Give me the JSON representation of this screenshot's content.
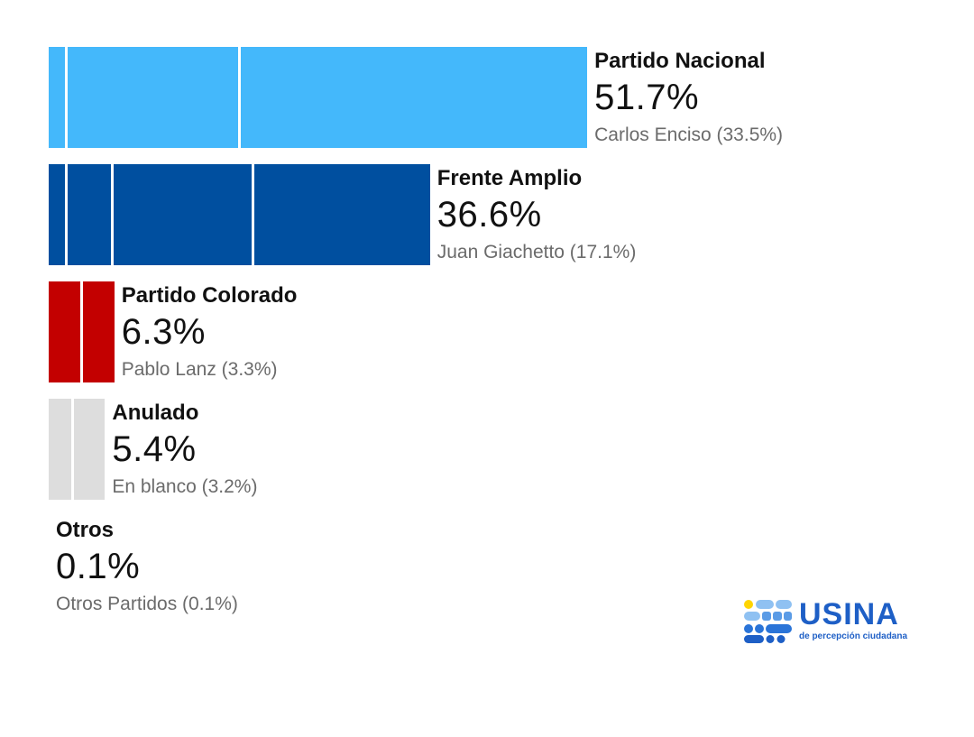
{
  "chart_data": {
    "type": "bar",
    "orientation": "horizontal",
    "value_unit": "%",
    "xlim": [
      0,
      100
    ],
    "categories": [
      "Partido Nacional",
      "Frente Amplio",
      "Partido Colorado",
      "Anulado",
      "Otros"
    ],
    "values": [
      51.7,
      36.6,
      6.3,
      5.4,
      0.1
    ],
    "value_labels": [
      "51.7%",
      "36.6%",
      "6.3%",
      "5.4%",
      "0.1%"
    ],
    "sublabels": [
      "Carlos Enciso (33.5%)",
      "Juan Giachetto (17.1%)",
      "Pablo Lanz (3.3%)",
      "En blanco (3.2%)",
      "Otros Partidos (0.1%)"
    ],
    "segments": [
      [
        1.6,
        16.6,
        33.5
      ],
      [
        1.6,
        4.4,
        13.5,
        17.1
      ],
      [
        3.0,
        3.3
      ],
      [
        2.2,
        3.2
      ],
      [
        0.1
      ]
    ],
    "colors": [
      "#44b8fb",
      "#004f9f",
      "#c30000",
      "#dddddd",
      "#dddddd"
    ]
  },
  "logo": {
    "name": "USINA",
    "tagline": "de percepción ciudadana",
    "color": "#1e5fc6",
    "accent": "#ffd500"
  }
}
